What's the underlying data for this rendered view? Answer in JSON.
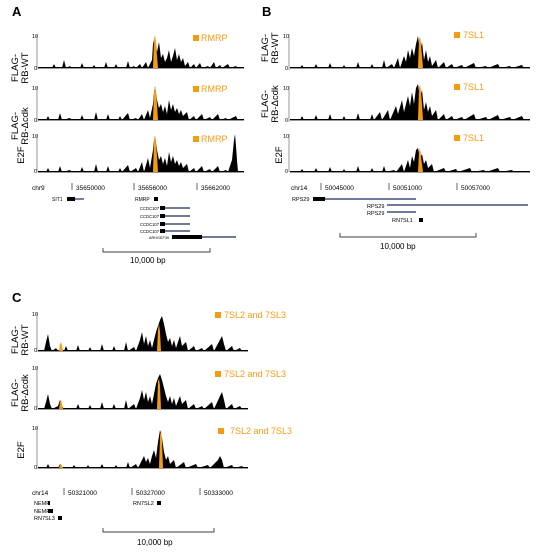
{
  "panels": [
    {
      "letter": "A",
      "tracks": [
        {
          "label1": "FLAG-",
          "label2": "RB-WT",
          "ymax": "10",
          "ymin": "0",
          "marker": "RMRP"
        },
        {
          "label1": "FLAG-",
          "label2": "RB-Δcdk",
          "ymax": "10",
          "ymin": "0",
          "marker": "RMRP"
        },
        {
          "label1": "E2F",
          "label2": "",
          "ymax": "10",
          "ymin": "0",
          "marker": "RMRP"
        }
      ],
      "chrom": "chr9",
      "coords": [
        "35650000",
        "35656000",
        "35662000"
      ],
      "genes": [
        "SIT1",
        "RMRP",
        "CCDC107",
        "CCDC107",
        "CCDC107",
        "CCDC107",
        "ARHGEF39"
      ],
      "scale": "10,000 bp"
    },
    {
      "letter": "B",
      "tracks": [
        {
          "label1": "FLAG-",
          "label2": "RB-WT",
          "ymax": "10",
          "ymin": "0",
          "marker": "7SL1"
        },
        {
          "label1": "FLAG-",
          "label2": "RB-Δcdk",
          "ymax": "10",
          "ymin": "0",
          "marker": "7SL1"
        },
        {
          "label1": "E2F",
          "label2": "",
          "ymax": "10",
          "ymin": "0",
          "marker": "7SL1"
        }
      ],
      "chrom": "chr14",
      "coords": [
        "50045000",
        "50051000",
        "50057000"
      ],
      "genes": [
        "RPS29",
        "RPS29",
        "RPS29",
        "RN7SL1"
      ],
      "scale": "10,000 bp"
    },
    {
      "letter": "C",
      "tracks": [
        {
          "label1": "FLAG-",
          "label2": "RB-WT",
          "ymax": "10",
          "ymin": "0",
          "marker": "7SL2 and 7SL3"
        },
        {
          "label1": "FLAG-",
          "label2": "RB-Δcdk",
          "ymax": "10",
          "ymin": "0",
          "marker": "7SL2 and 7SL3"
        },
        {
          "label1": "E2F",
          "label2": "",
          "ymax": "10",
          "ymin": "0",
          "marker": "7SL2 and 7SL3"
        }
      ],
      "chrom": "chr14",
      "coords": [
        "50321000",
        "50327000",
        "50333000"
      ],
      "genes": [
        "NEMF",
        "NEMF",
        "RN7SL3",
        "RN7SL2"
      ],
      "scale": "10,000 bp"
    }
  ],
  "colors": {
    "signal": "#000000",
    "highlight": "#f39c12",
    "gene": "#1c2b5a",
    "gene_box": "#000000"
  }
}
